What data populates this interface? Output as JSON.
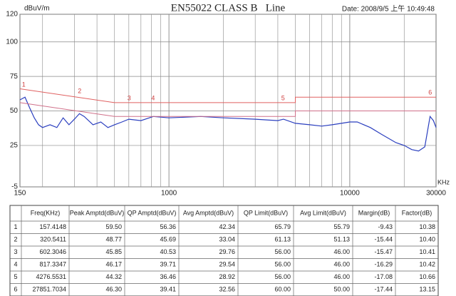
{
  "chart_data": {
    "type": "line",
    "title": "EN55022 CLASS B   Line",
    "ylabel": "dBuV/m",
    "xlabel": "KHz",
    "date": "Date: 2008/9/5 上午 10:49:48",
    "xscale": "log",
    "xlim": [
      150,
      30000
    ],
    "xticks": [
      150,
      1000,
      10000,
      30000
    ],
    "xgrid": [
      200,
      300,
      400,
      500,
      600,
      700,
      800,
      900,
      2000,
      3000,
      4000,
      5000,
      6000,
      7000,
      8000,
      9000,
      20000
    ],
    "ylim": [
      -5,
      120
    ],
    "yticks": [
      -5,
      25,
      50,
      75,
      100,
      120
    ],
    "grid": true,
    "series": [
      {
        "color": "#2b3fbf",
        "x": [
          150,
          160,
          170,
          180,
          190,
          200,
          220,
          240,
          260,
          280,
          300,
          320,
          340,
          380,
          420,
          460,
          500,
          550,
          600,
          700,
          820,
          1000,
          1500,
          2000,
          3000,
          4000,
          4300,
          5000,
          6000,
          7000,
          8000,
          9000,
          10000,
          11000,
          13000,
          15000,
          18000,
          20000,
          22000,
          24000,
          26000,
          27800,
          29000,
          30000
        ],
        "values": [
          58,
          60,
          52,
          45,
          40,
          38,
          40,
          38,
          45,
          40,
          44,
          48,
          46,
          40,
          42,
          38,
          40,
          42,
          44,
          43,
          46,
          45,
          46,
          45,
          44,
          43,
          44,
          41,
          40,
          39,
          40,
          41,
          42,
          42,
          38,
          33,
          27,
          25,
          22,
          21,
          24,
          46,
          43,
          38
        ]
      },
      {
        "color": "#e06060",
        "x": [
          150,
          500,
          5000,
          5000,
          30000
        ],
        "values": [
          66,
          56,
          56,
          60,
          60
        ]
      },
      {
        "color": "#d0708a",
        "x": [
          150,
          500,
          5000,
          5000,
          30000
        ],
        "values": [
          56,
          46,
          46,
          50,
          50
        ]
      }
    ]
  },
  "table": {
    "header": [
      "Freq(KHz)",
      "Peak Amptd(dBuV)",
      "QP Amptd(dBuV)",
      "Avg Amptd(dBuV)",
      "QP Limit(dBuV)",
      "Avg Limit(dBuV)",
      "Margin(dB)",
      "Factor(dB)"
    ],
    "rows": [
      [
        "1",
        "157.4148",
        "59.50",
        "56.36",
        "42.34",
        "65.79",
        "55.79",
        "-9.43",
        "10.38"
      ],
      [
        "2",
        "320.5411",
        "48.77",
        "45.69",
        "33.04",
        "61.13",
        "51.13",
        "-15.44",
        "10.40"
      ],
      [
        "3",
        "602.3046",
        "45.85",
        "40.53",
        "29.76",
        "56.00",
        "46.00",
        "-15.47",
        "10.41"
      ],
      [
        "4",
        "817.3347",
        "46.17",
        "39.71",
        "29.54",
        "56.00",
        "46.00",
        "-16.29",
        "10.42"
      ],
      [
        "5",
        "4276.5531",
        "44.32",
        "36.46",
        "28.92",
        "56.00",
        "46.00",
        "-17.08",
        "10.66"
      ],
      [
        "6",
        "27851.7034",
        "46.30",
        "39.41",
        "32.56",
        "60.00",
        "50.00",
        "-17.44",
        "13.15"
      ]
    ]
  }
}
